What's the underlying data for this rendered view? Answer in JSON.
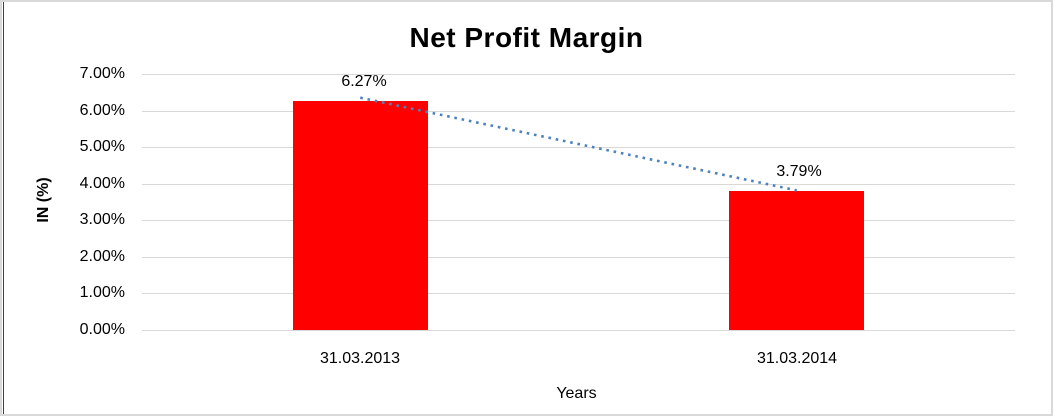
{
  "chart_data": {
    "type": "bar",
    "title": "Net Profit Margin",
    "xlabel": "Years",
    "ylabel": "IN (%)",
    "categories": [
      "31.03.2013",
      "31.03.2014"
    ],
    "values": [
      6.27,
      3.79
    ],
    "data_labels": [
      "6.27%",
      "3.79%"
    ],
    "y_tick_values": [
      0,
      1,
      2,
      3,
      4,
      5,
      6,
      7
    ],
    "y_tick_labels": [
      "0.00%",
      "1.00%",
      "2.00%",
      "3.00%",
      "4.00%",
      "5.00%",
      "6.00%",
      "7.00%"
    ],
    "ylim": [
      0,
      7
    ],
    "grid": true,
    "legend": "none",
    "trendline": {
      "type": "linear",
      "style": "dotted"
    }
  },
  "colors": {
    "bar": "#FF0000",
    "trendline": "#4F81BD",
    "gridline": "#D9D9D9",
    "text": "#000000",
    "frame_border": "#D9D9D9",
    "frame_left_edge": "#3F3F3F"
  }
}
